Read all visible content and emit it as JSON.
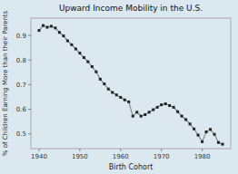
{
  "chart_data": {
    "type": "line",
    "title": "Upward Income Mobility in the U.S.",
    "x_label": "Birth Cohort",
    "y_label": "% of Children Earning More than their Parents",
    "x": [
      1940,
      1941,
      1942,
      1943,
      1944,
      1945,
      1946,
      1947,
      1948,
      1949,
      1950,
      1951,
      1952,
      1953,
      1954,
      1955,
      1956,
      1957,
      1958,
      1959,
      1960,
      1961,
      1962,
      1963,
      1964,
      1965,
      1966,
      1967,
      1968,
      1969,
      1970,
      1971,
      1972,
      1973,
      1974,
      1975,
      1976,
      1977,
      1978,
      1979,
      1980,
      1981,
      1982,
      1983,
      1984,
      1985
    ],
    "values": [
      0.92,
      0.94,
      0.933,
      0.937,
      0.93,
      0.912,
      0.898,
      0.878,
      0.862,
      0.845,
      0.828,
      0.81,
      0.793,
      0.773,
      0.752,
      0.722,
      0.703,
      0.682,
      0.668,
      0.658,
      0.648,
      0.638,
      0.63,
      0.572,
      0.588,
      0.572,
      0.578,
      0.588,
      0.598,
      0.608,
      0.618,
      0.622,
      0.615,
      0.608,
      0.59,
      0.572,
      0.558,
      0.54,
      0.52,
      0.495,
      0.468,
      0.508,
      0.518,
      0.498,
      0.465,
      0.458
    ],
    "xlim": [
      1938,
      1987
    ],
    "ylim": [
      0.44,
      0.97
    ],
    "xticks": [
      1940,
      1950,
      1960,
      1970,
      1980
    ],
    "yticks": [
      0.5,
      0.6,
      0.7,
      0.8,
      0.9
    ],
    "color": "#888888",
    "marker": "square",
    "grid": false
  }
}
